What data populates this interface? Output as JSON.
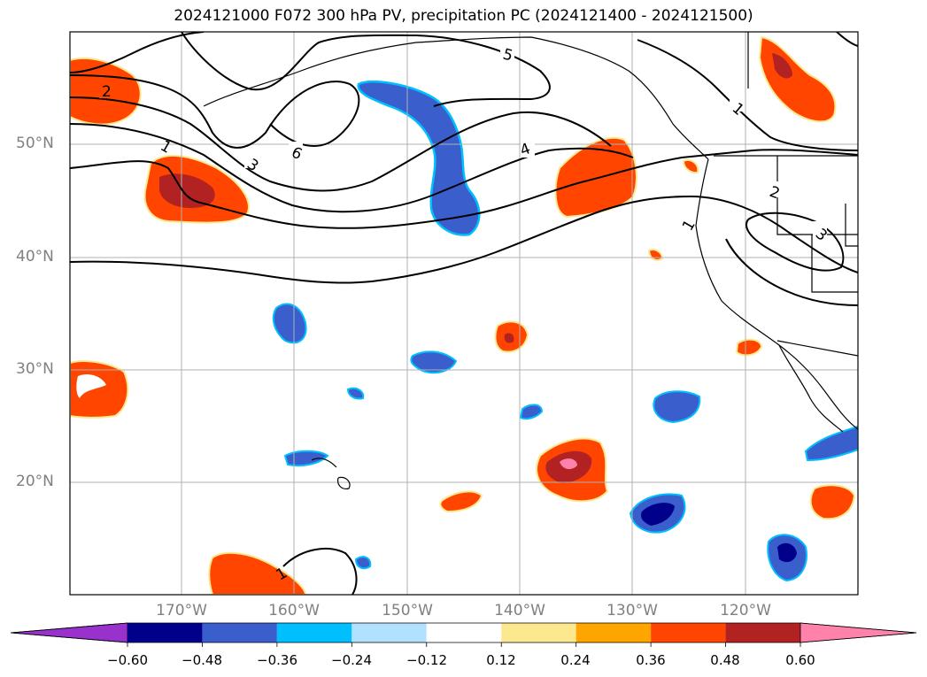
{
  "title": "2024121000 F072 300 hPa PV, precipitation PC (2024121400 - 2024121500)",
  "lat_labels": [
    "50°N",
    "40°N",
    "30°N",
    "20°N"
  ],
  "lon_labels": [
    "170°W",
    "160°W",
    "150°W",
    "140°W",
    "130°W",
    "120°W"
  ],
  "pv_contour_labels": [
    "2",
    "1",
    "3",
    "6",
    "5",
    "4",
    "1",
    "2",
    "3",
    "1",
    "1"
  ],
  "colorbar": {
    "ticks": [
      "−0.60",
      "−0.48",
      "−0.36",
      "−0.24",
      "−0.12",
      "0.12",
      "0.24",
      "0.36",
      "0.48",
      "0.60"
    ],
    "colors": [
      "#9932cc",
      "#00008b",
      "#3a5fcd",
      "#00bfff",
      "#b0e2ff",
      "#ffffff",
      "#fce88f",
      "#ffa500",
      "#ff4500",
      "#b22222",
      "#ff82ab"
    ]
  },
  "colors": {
    "grid": "#b0b0b0",
    "contour": "#000000",
    "land_outline": "#000000",
    "axis_label": "#808080"
  }
}
